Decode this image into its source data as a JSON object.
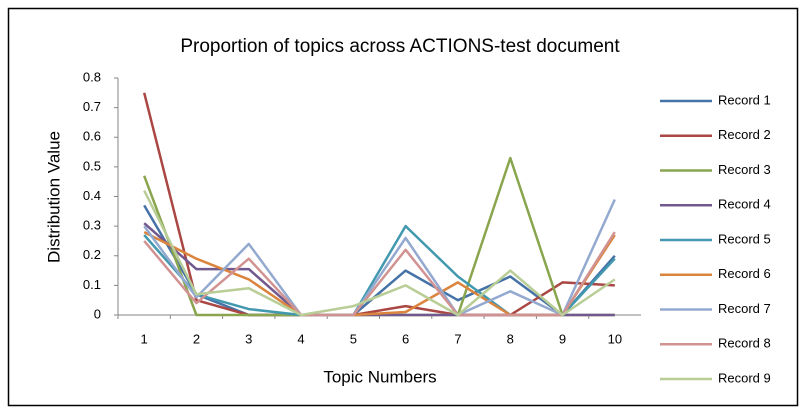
{
  "chart_data": {
    "type": "line",
    "title": "Proportion of topics across ACTIONS-test document",
    "x_label": "Topic Numbers",
    "y_label": "Distribution Value",
    "categories": [
      "1",
      "2",
      "3",
      "4",
      "5",
      "6",
      "7",
      "8",
      "9",
      "10"
    ],
    "ylim": [
      0,
      0.8
    ],
    "yticks": [
      0,
      0.1,
      0.2,
      0.3,
      0.4,
      0.5,
      0.6,
      0.7,
      0.8
    ],
    "legend": "right",
    "series": [
      {
        "name": "Record 1",
        "color": "#4572a7",
        "values": [
          0.37,
          0.07,
          0,
          0,
          0,
          0.15,
          0.05,
          0.13,
          0,
          0.2
        ]
      },
      {
        "name": "Record 2",
        "color": "#aa4643",
        "values": [
          0.75,
          0.05,
          0,
          0,
          0,
          0.03,
          0,
          0,
          0.11,
          0.1
        ]
      },
      {
        "name": "Record 3",
        "color": "#89a54e",
        "values": [
          0.47,
          0,
          0,
          0,
          0,
          0,
          0,
          0.53,
          0,
          0
        ]
      },
      {
        "name": "Record 4",
        "color": "#71588f",
        "values": [
          0.31,
          0.155,
          0.155,
          0,
          0,
          0,
          0,
          0,
          0,
          0
        ]
      },
      {
        "name": "Record 5",
        "color": "#4198af",
        "values": [
          0.27,
          0.07,
          0.02,
          0,
          0,
          0.3,
          0.13,
          0,
          0,
          0.19
        ]
      },
      {
        "name": "Record 6",
        "color": "#db843d",
        "values": [
          0.28,
          0.19,
          0.12,
          0,
          0,
          0.01,
          0.11,
          0,
          0,
          0.27
        ]
      },
      {
        "name": "Record 7",
        "color": "#93a9cf",
        "values": [
          0.3,
          0.06,
          0.24,
          0,
          0,
          0.26,
          0,
          0.08,
          0,
          0.39
        ]
      },
      {
        "name": "Record 8",
        "color": "#d19392",
        "values": [
          0.25,
          0.04,
          0.19,
          0,
          0,
          0.22,
          0,
          0,
          0,
          0.28
        ]
      },
      {
        "name": "Record 9",
        "color": "#b9cd96",
        "values": [
          0.42,
          0.07,
          0.09,
          0,
          0.03,
          0.1,
          0,
          0.15,
          0,
          0.12
        ]
      }
    ]
  }
}
